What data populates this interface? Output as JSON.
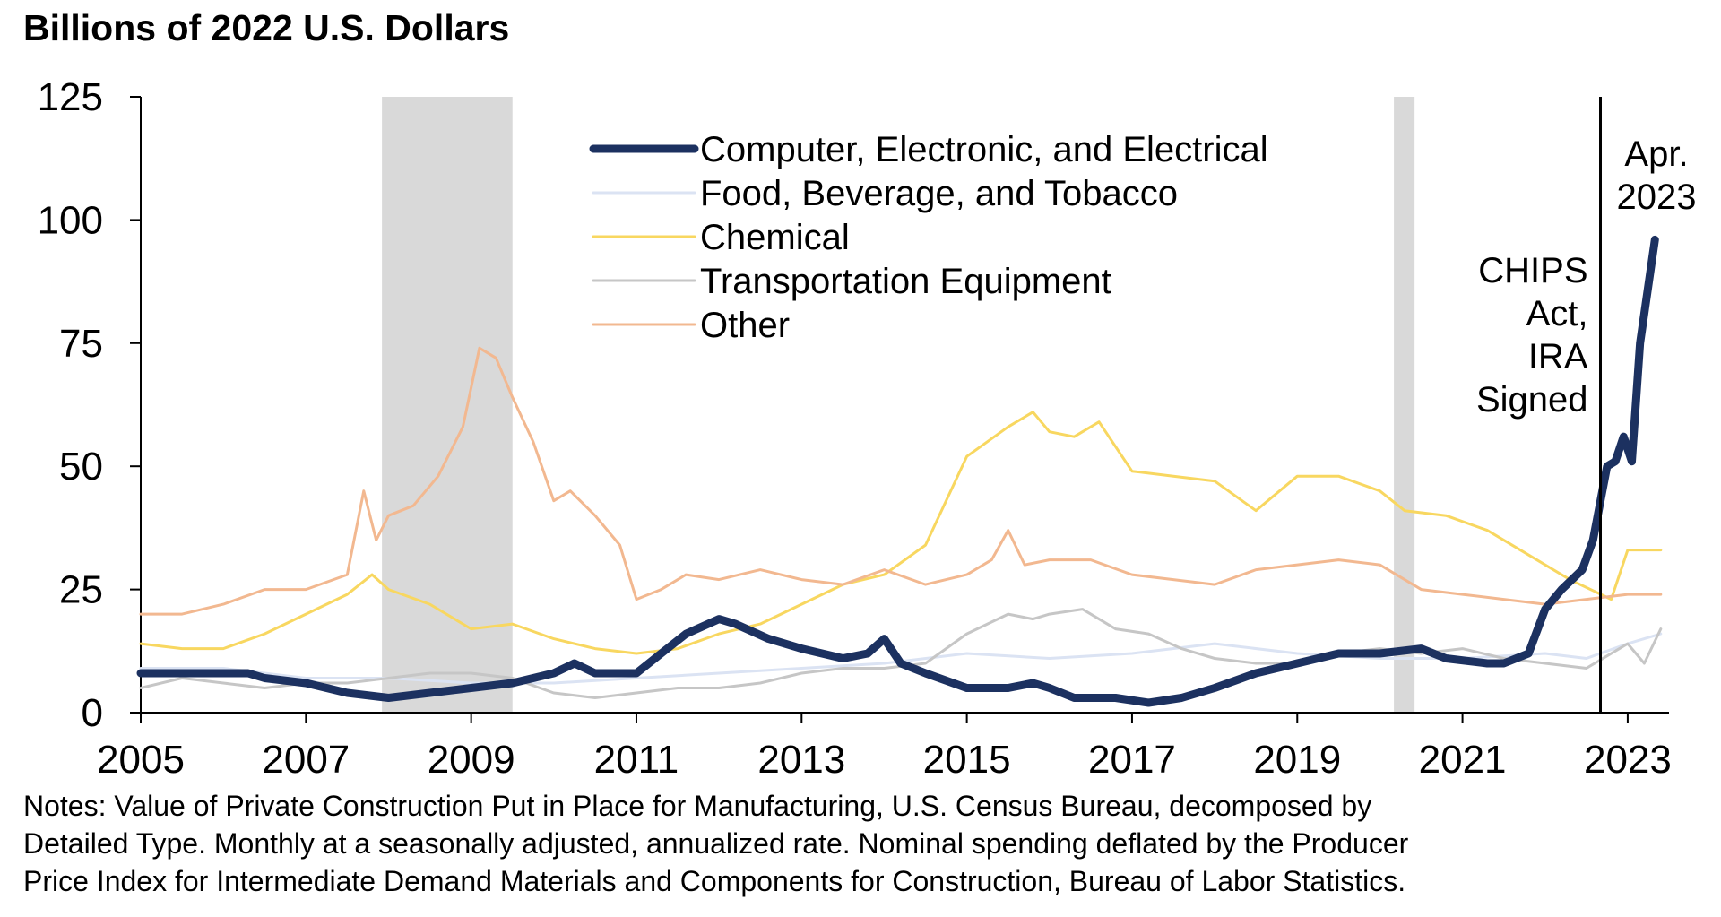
{
  "chart_data": {
    "type": "line",
    "title": "Billions of 2022 U.S. Dollars",
    "xlabel": "",
    "ylabel": "Billions of 2022 U.S. Dollars",
    "xlim": [
      2005.0,
      2023.5
    ],
    "ylim": [
      0,
      125
    ],
    "x_ticks": [
      "2005",
      "2007",
      "2009",
      "2011",
      "2013",
      "2015",
      "2017",
      "2019",
      "2021",
      "2023"
    ],
    "y_ticks": [
      "0",
      "25",
      "50",
      "75",
      "100",
      "125"
    ],
    "grid": false,
    "legend_position": "top-center",
    "recessions": [
      {
        "start": 2007.92,
        "end": 2009.5
      },
      {
        "start": 2020.17,
        "end": 2020.42
      }
    ],
    "annotations": [
      {
        "x": 2022.67,
        "type": "vline",
        "lines": [
          "CHIPS",
          "Act,",
          "IRA",
          "Signed"
        ]
      },
      {
        "x": 2023.25,
        "type": "label",
        "lines": [
          "Apr.",
          "2023"
        ]
      }
    ],
    "series": [
      {
        "name": "Computer, Electronic, and Electrical",
        "color": "#1c3160",
        "width": 9,
        "points": [
          [
            2005.0,
            8
          ],
          [
            2005.5,
            8
          ],
          [
            2006.0,
            8
          ],
          [
            2006.3,
            8
          ],
          [
            2006.5,
            7
          ],
          [
            2007.0,
            6
          ],
          [
            2007.5,
            4
          ],
          [
            2008.0,
            3
          ],
          [
            2008.5,
            4
          ],
          [
            2009.0,
            5
          ],
          [
            2009.5,
            6
          ],
          [
            2010.0,
            8
          ],
          [
            2010.25,
            10
          ],
          [
            2010.5,
            8
          ],
          [
            2011.0,
            8
          ],
          [
            2011.3,
            12
          ],
          [
            2011.6,
            16
          ],
          [
            2012.0,
            19
          ],
          [
            2012.2,
            18
          ],
          [
            2012.6,
            15
          ],
          [
            2013.0,
            13
          ],
          [
            2013.5,
            11
          ],
          [
            2013.8,
            12
          ],
          [
            2014.0,
            15
          ],
          [
            2014.2,
            10
          ],
          [
            2014.5,
            8
          ],
          [
            2015.0,
            5
          ],
          [
            2015.5,
            5
          ],
          [
            2015.8,
            6
          ],
          [
            2016.0,
            5
          ],
          [
            2016.3,
            3
          ],
          [
            2016.8,
            3
          ],
          [
            2017.2,
            2
          ],
          [
            2017.6,
            3
          ],
          [
            2018.0,
            5
          ],
          [
            2018.5,
            8
          ],
          [
            2019.0,
            10
          ],
          [
            2019.5,
            12
          ],
          [
            2020.0,
            12
          ],
          [
            2020.5,
            13
          ],
          [
            2020.8,
            11
          ],
          [
            2021.3,
            10
          ],
          [
            2021.5,
            10
          ],
          [
            2021.8,
            12
          ],
          [
            2022.0,
            21
          ],
          [
            2022.2,
            25
          ],
          [
            2022.45,
            29
          ],
          [
            2022.58,
            35
          ],
          [
            2022.75,
            50
          ],
          [
            2022.85,
            51
          ],
          [
            2022.95,
            56
          ],
          [
            2023.05,
            51
          ],
          [
            2023.15,
            75
          ],
          [
            2023.33,
            96
          ]
        ]
      },
      {
        "name": "Food, Beverage, and Tobacco",
        "color": "#dbe3f3",
        "width": 3,
        "points": [
          [
            2005.0,
            9
          ],
          [
            2006.0,
            9
          ],
          [
            2007.0,
            7
          ],
          [
            2008.0,
            7
          ],
          [
            2009.0,
            6
          ],
          [
            2010.0,
            6
          ],
          [
            2011.0,
            7
          ],
          [
            2012.0,
            8
          ],
          [
            2013.0,
            9
          ],
          [
            2014.0,
            10
          ],
          [
            2015.0,
            12
          ],
          [
            2016.0,
            11
          ],
          [
            2017.0,
            12
          ],
          [
            2018.0,
            14
          ],
          [
            2019.0,
            12
          ],
          [
            2020.0,
            11
          ],
          [
            2021.0,
            11
          ],
          [
            2022.0,
            12
          ],
          [
            2022.5,
            11
          ],
          [
            2023.0,
            14
          ],
          [
            2023.4,
            16
          ]
        ]
      },
      {
        "name": "Chemical",
        "color": "#f8d760",
        "width": 3,
        "points": [
          [
            2005.0,
            14
          ],
          [
            2005.5,
            13
          ],
          [
            2006.0,
            13
          ],
          [
            2006.5,
            16
          ],
          [
            2007.0,
            20
          ],
          [
            2007.5,
            24
          ],
          [
            2007.8,
            28
          ],
          [
            2008.0,
            25
          ],
          [
            2008.5,
            22
          ],
          [
            2009.0,
            17
          ],
          [
            2009.5,
            18
          ],
          [
            2010.0,
            15
          ],
          [
            2010.5,
            13
          ],
          [
            2011.0,
            12
          ],
          [
            2011.5,
            13
          ],
          [
            2012.0,
            16
          ],
          [
            2012.5,
            18
          ],
          [
            2013.0,
            22
          ],
          [
            2013.5,
            26
          ],
          [
            2014.0,
            28
          ],
          [
            2014.5,
            34
          ],
          [
            2015.0,
            52
          ],
          [
            2015.5,
            58
          ],
          [
            2015.8,
            61
          ],
          [
            2016.0,
            57
          ],
          [
            2016.3,
            56
          ],
          [
            2016.6,
            59
          ],
          [
            2017.0,
            49
          ],
          [
            2017.5,
            48
          ],
          [
            2018.0,
            47
          ],
          [
            2018.5,
            41
          ],
          [
            2019.0,
            48
          ],
          [
            2019.5,
            48
          ],
          [
            2020.0,
            45
          ],
          [
            2020.3,
            41
          ],
          [
            2020.8,
            40
          ],
          [
            2021.3,
            37
          ],
          [
            2021.8,
            32
          ],
          [
            2022.3,
            27
          ],
          [
            2022.8,
            23
          ],
          [
            2023.0,
            33
          ],
          [
            2023.4,
            33
          ]
        ]
      },
      {
        "name": "Transportation Equipment",
        "color": "#c6c6c6",
        "width": 3,
        "points": [
          [
            2005.0,
            5
          ],
          [
            2005.5,
            7
          ],
          [
            2006.0,
            6
          ],
          [
            2006.5,
            5
          ],
          [
            2007.0,
            6
          ],
          [
            2007.5,
            6
          ],
          [
            2008.0,
            7
          ],
          [
            2008.5,
            8
          ],
          [
            2009.0,
            8
          ],
          [
            2009.5,
            7
          ],
          [
            2010.0,
            4
          ],
          [
            2010.5,
            3
          ],
          [
            2011.0,
            4
          ],
          [
            2011.5,
            5
          ],
          [
            2012.0,
            5
          ],
          [
            2012.5,
            6
          ],
          [
            2013.0,
            8
          ],
          [
            2013.5,
            9
          ],
          [
            2014.0,
            9
          ],
          [
            2014.5,
            10
          ],
          [
            2015.0,
            16
          ],
          [
            2015.5,
            20
          ],
          [
            2015.8,
            19
          ],
          [
            2016.0,
            20
          ],
          [
            2016.4,
            21
          ],
          [
            2016.8,
            17
          ],
          [
            2017.2,
            16
          ],
          [
            2017.6,
            13
          ],
          [
            2018.0,
            11
          ],
          [
            2018.5,
            10
          ],
          [
            2019.0,
            10
          ],
          [
            2019.5,
            12
          ],
          [
            2020.0,
            13
          ],
          [
            2020.5,
            12
          ],
          [
            2021.0,
            13
          ],
          [
            2021.5,
            11
          ],
          [
            2022.0,
            10
          ],
          [
            2022.5,
            9
          ],
          [
            2023.0,
            14
          ],
          [
            2023.2,
            10
          ],
          [
            2023.4,
            17
          ]
        ]
      },
      {
        "name": "Other",
        "color": "#f2b890",
        "width": 3,
        "points": [
          [
            2005.0,
            20
          ],
          [
            2005.5,
            20
          ],
          [
            2006.0,
            22
          ],
          [
            2006.5,
            25
          ],
          [
            2007.0,
            25
          ],
          [
            2007.5,
            28
          ],
          [
            2007.7,
            45
          ],
          [
            2007.85,
            35
          ],
          [
            2008.0,
            40
          ],
          [
            2008.3,
            42
          ],
          [
            2008.6,
            48
          ],
          [
            2008.9,
            58
          ],
          [
            2009.1,
            74
          ],
          [
            2009.3,
            72
          ],
          [
            2009.5,
            64
          ],
          [
            2009.75,
            55
          ],
          [
            2010.0,
            43
          ],
          [
            2010.2,
            45
          ],
          [
            2010.5,
            40
          ],
          [
            2010.8,
            34
          ],
          [
            2011.0,
            23
          ],
          [
            2011.3,
            25
          ],
          [
            2011.6,
            28
          ],
          [
            2012.0,
            27
          ],
          [
            2012.5,
            29
          ],
          [
            2013.0,
            27
          ],
          [
            2013.5,
            26
          ],
          [
            2014.0,
            29
          ],
          [
            2014.5,
            26
          ],
          [
            2015.0,
            28
          ],
          [
            2015.3,
            31
          ],
          [
            2015.5,
            37
          ],
          [
            2015.7,
            30
          ],
          [
            2016.0,
            31
          ],
          [
            2016.5,
            31
          ],
          [
            2017.0,
            28
          ],
          [
            2017.5,
            27
          ],
          [
            2018.0,
            26
          ],
          [
            2018.5,
            29
          ],
          [
            2019.0,
            30
          ],
          [
            2019.5,
            31
          ],
          [
            2020.0,
            30
          ],
          [
            2020.5,
            25
          ],
          [
            2021.0,
            24
          ],
          [
            2021.5,
            23
          ],
          [
            2022.0,
            22
          ],
          [
            2022.5,
            23
          ],
          [
            2023.0,
            24
          ],
          [
            2023.4,
            24
          ]
        ]
      }
    ]
  },
  "notes": {
    "line1": "Notes: Value of Private Construction Put in Place for Manufacturing, U.S. Census Bureau, decomposed by",
    "line2": "Detailed Type. Monthly at a seasonally adjusted, annualized rate. Nominal spending deflated by the Producer",
    "line3": "Price Index for Intermediate Demand Materials and Components for Construction, Bureau of Labor Statistics."
  }
}
